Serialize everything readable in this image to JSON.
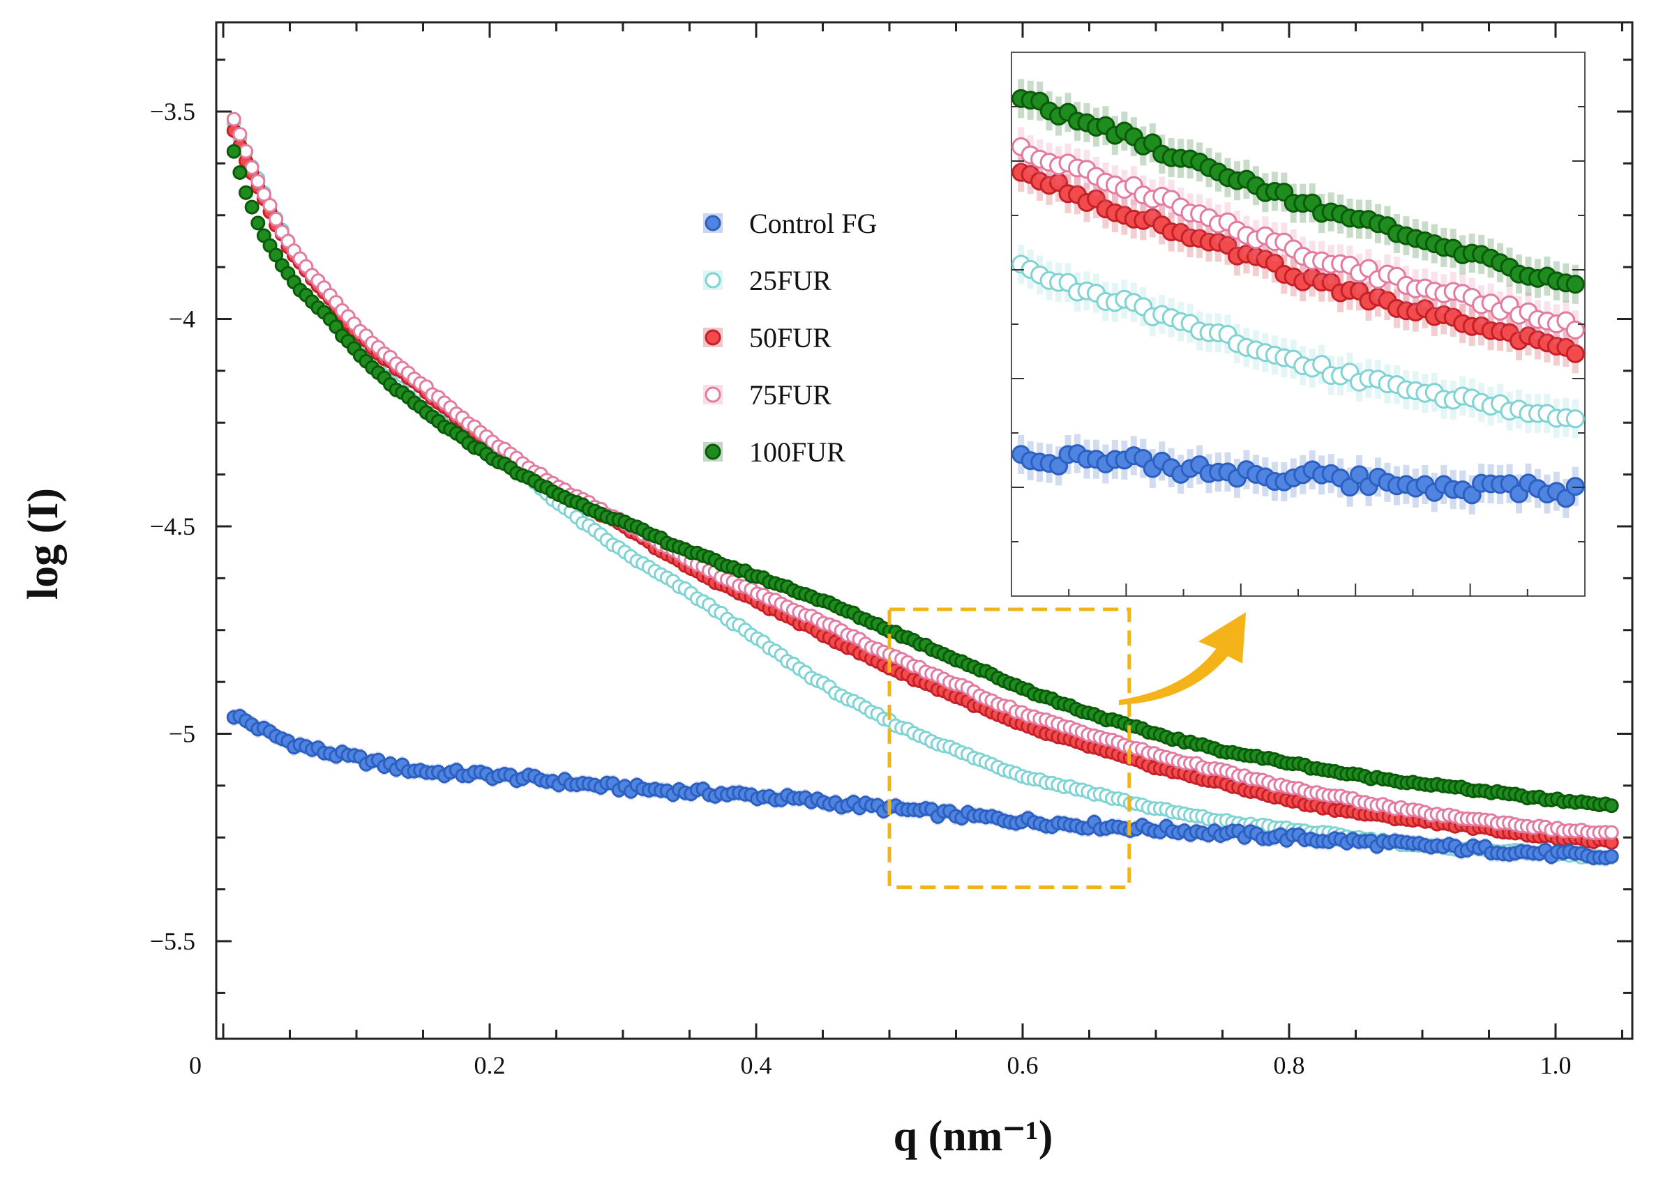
{
  "chart_data": {
    "type": "scatter",
    "title": "",
    "xlabel": "q (nm⁻¹)",
    "ylabel": "log (I)",
    "xlim": [
      0,
      1.05
    ],
    "ylim": [
      -5.75,
      -3.28
    ],
    "xticks": [
      {
        "value": 0,
        "label": "0"
      },
      {
        "value": 0.2,
        "label": "0.2"
      },
      {
        "value": 0.4,
        "label": "0.4"
      },
      {
        "value": 0.6,
        "label": "0.6"
      },
      {
        "value": 0.8,
        "label": "0.8"
      },
      {
        "value": 1.0,
        "label": "1.0"
      }
    ],
    "yticks": [
      {
        "value": -3.5,
        "label": "−3.5"
      },
      {
        "value": -4,
        "label": "−4"
      },
      {
        "value": -4.5,
        "label": "−4.5"
      },
      {
        "value": -5,
        "label": "−5"
      },
      {
        "value": -5.5,
        "label": "−5.5"
      }
    ],
    "grid": false,
    "legend_position": "upper-center",
    "series": [
      {
        "name": "Control FG",
        "color": "#4f84e0",
        "edge": "#2d5fc0",
        "filled": true,
        "x": [
          0.005,
          0.05,
          0.1,
          0.15,
          0.2,
          0.3,
          0.4,
          0.5,
          0.6,
          0.7,
          0.8,
          0.9,
          1.0,
          1.04
        ],
        "y": [
          -4.95,
          -5.02,
          -5.06,
          -5.09,
          -5.1,
          -5.13,
          -5.15,
          -5.18,
          -5.21,
          -5.23,
          -5.25,
          -5.27,
          -5.29,
          -5.3
        ]
      },
      {
        "name": "25FUR",
        "color": "#ffffff",
        "edge": "#7fd3d3",
        "filled": false,
        "x": [
          0.005,
          0.02,
          0.05,
          0.08,
          0.1,
          0.15,
          0.2,
          0.25,
          0.3,
          0.35,
          0.4,
          0.45,
          0.5,
          0.55,
          0.6,
          0.65,
          0.7,
          0.75,
          0.8,
          0.85,
          0.9,
          0.95,
          1.0,
          1.04
        ],
        "y": [
          -3.5,
          -3.62,
          -3.82,
          -3.95,
          -4.03,
          -4.18,
          -4.3,
          -4.44,
          -4.56,
          -4.66,
          -4.77,
          -4.88,
          -4.97,
          -5.04,
          -5.1,
          -5.14,
          -5.18,
          -5.21,
          -5.23,
          -5.25,
          -5.27,
          -5.28,
          -5.29,
          -5.3
        ]
      },
      {
        "name": "50FUR",
        "color": "#f24b4b",
        "edge": "#c4202a",
        "filled": true,
        "x": [
          0.005,
          0.02,
          0.05,
          0.08,
          0.1,
          0.15,
          0.2,
          0.25,
          0.3,
          0.35,
          0.4,
          0.45,
          0.5,
          0.55,
          0.6,
          0.65,
          0.7,
          0.75,
          0.8,
          0.85,
          0.9,
          0.95,
          1.0,
          1.04
        ],
        "y": [
          -3.52,
          -3.64,
          -3.83,
          -3.95,
          -4.03,
          -4.17,
          -4.3,
          -4.41,
          -4.5,
          -4.6,
          -4.68,
          -4.76,
          -4.84,
          -4.91,
          -4.98,
          -5.03,
          -5.08,
          -5.12,
          -5.16,
          -5.19,
          -5.21,
          -5.23,
          -5.25,
          -5.26
        ]
      },
      {
        "name": "75FUR",
        "color": "#ffffff",
        "edge": "#e37aa0",
        "filled": false,
        "x": [
          0.005,
          0.02,
          0.05,
          0.08,
          0.1,
          0.15,
          0.2,
          0.25,
          0.3,
          0.35,
          0.4,
          0.45,
          0.5,
          0.55,
          0.6,
          0.65,
          0.7,
          0.75,
          0.8,
          0.85,
          0.9,
          0.95,
          1.0,
          1.04
        ],
        "y": [
          -3.49,
          -3.62,
          -3.82,
          -3.94,
          -4.02,
          -4.16,
          -4.29,
          -4.4,
          -4.49,
          -4.58,
          -4.66,
          -4.73,
          -4.81,
          -4.88,
          -4.95,
          -5.0,
          -5.05,
          -5.09,
          -5.13,
          -5.16,
          -5.19,
          -5.21,
          -5.23,
          -5.24
        ]
      },
      {
        "name": "100FUR",
        "color": "#1e8c1e",
        "edge": "#0a5a0a",
        "filled": true,
        "x": [
          0.005,
          0.02,
          0.05,
          0.08,
          0.1,
          0.15,
          0.2,
          0.25,
          0.3,
          0.35,
          0.4,
          0.45,
          0.5,
          0.55,
          0.6,
          0.65,
          0.7,
          0.75,
          0.8,
          0.85,
          0.9,
          0.95,
          1.0,
          1.04
        ],
        "y": [
          -3.56,
          -3.72,
          -3.9,
          -4.0,
          -4.08,
          -4.22,
          -4.33,
          -4.42,
          -4.49,
          -4.56,
          -4.62,
          -4.68,
          -4.75,
          -4.82,
          -4.89,
          -4.95,
          -5.0,
          -5.04,
          -5.07,
          -5.1,
          -5.12,
          -5.14,
          -5.16,
          -5.17
        ]
      }
    ],
    "inset": {
      "zoom_region": {
        "xlim": [
          0.5,
          0.68
        ],
        "ylim": [
          -5.37,
          -4.7
        ]
      },
      "x_ticks_count": 5
    }
  },
  "colors": {
    "zoom_box": "#f0b419",
    "arrow": "#f5b31a",
    "axis": "#222222"
  }
}
